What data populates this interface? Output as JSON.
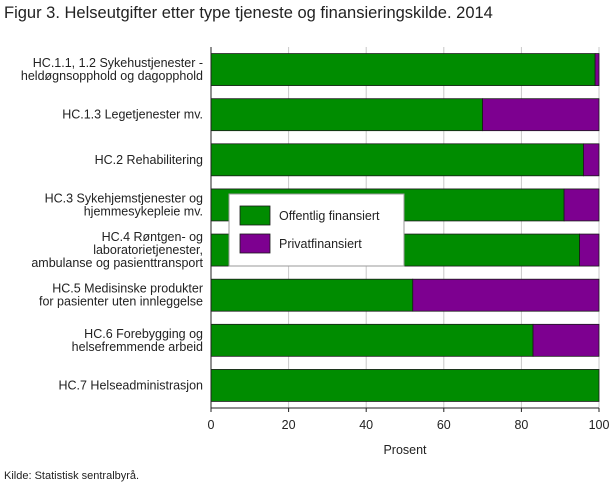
{
  "figure": {
    "title": "Figur 3. Helseutgifter etter type tjeneste og finansieringskilde. 2014",
    "source": "Kilde: Statistisk sentralbyrå."
  },
  "colors": {
    "public": "#008c00",
    "private": "#7d0090",
    "grid": "#c8c8c8",
    "axis": "#222222"
  },
  "chart_data": {
    "type": "bar",
    "orientation": "horizontal",
    "stacked": true,
    "categories": [
      [
        "HC.1.1, 1.2 Sykehustjenester -",
        "heldøgnsopphold og dagopphold"
      ],
      [
        "HC.1.3 Legetjenester mv."
      ],
      [
        "HC.2 Rehabilitering"
      ],
      [
        "HC.3 Sykehjemstjenester og",
        "hjemmesykepleie mv."
      ],
      [
        "HC.4 Røntgen- og",
        "laboratorietjenester,",
        "ambulanse og pasienttransport"
      ],
      [
        "HC.5  Medisinske produkter",
        "for pasienter uten innleggelse"
      ],
      [
        "HC.6 Forebygging og",
        "helsefremmende arbeid"
      ],
      [
        "HC.7 Helseadministrasjon"
      ]
    ],
    "series": [
      {
        "name": "Offentlig finansiert",
        "values": [
          99,
          70,
          96,
          91,
          95,
          52,
          83,
          100
        ]
      },
      {
        "name": "Privatfinansiert",
        "values": [
          1,
          30,
          4,
          9,
          5,
          48,
          17,
          0
        ]
      }
    ],
    "xlabel": "Prosent",
    "xlim": [
      0,
      100
    ],
    "xticks": [
      0,
      20,
      40,
      60,
      80,
      100
    ],
    "grid": true,
    "legend_position": "center-left"
  }
}
